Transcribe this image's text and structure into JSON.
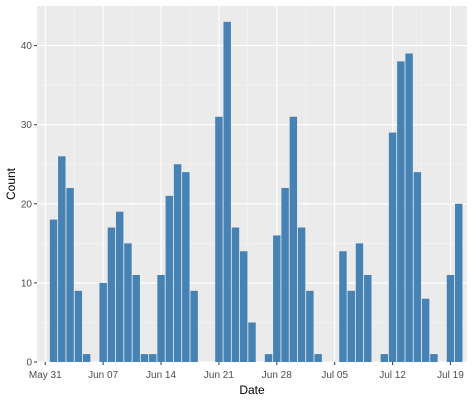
{
  "chart_data": {
    "type": "bar",
    "xlabel": "Date",
    "ylabel": "Count",
    "xlim": [
      "2020-05-30",
      "2020-07-21"
    ],
    "ylim": [
      0,
      45
    ],
    "y_ticks": [
      0,
      10,
      20,
      30,
      40
    ],
    "x_ticks": [
      {
        "date": "2020-05-31",
        "label": "May 31"
      },
      {
        "date": "2020-06-07",
        "label": "Jun 07"
      },
      {
        "date": "2020-06-14",
        "label": "Jun 14"
      },
      {
        "date": "2020-06-21",
        "label": "Jun 21"
      },
      {
        "date": "2020-06-28",
        "label": "Jun 28"
      },
      {
        "date": "2020-07-05",
        "label": "Jul 05"
      },
      {
        "date": "2020-07-12",
        "label": "Jul 12"
      },
      {
        "date": "2020-07-19",
        "label": "Jul 19"
      }
    ],
    "grid": true,
    "bar_color": "#4682B4",
    "panel_color": "#EBEBEB",
    "x": [
      "2020-06-01",
      "2020-06-02",
      "2020-06-03",
      "2020-06-04",
      "2020-06-05",
      "2020-06-06",
      "2020-06-07",
      "2020-06-08",
      "2020-06-09",
      "2020-06-10",
      "2020-06-11",
      "2020-06-12",
      "2020-06-13",
      "2020-06-14",
      "2020-06-15",
      "2020-06-16",
      "2020-06-17",
      "2020-06-18",
      "2020-06-19",
      "2020-06-20",
      "2020-06-21",
      "2020-06-22",
      "2020-06-23",
      "2020-06-24",
      "2020-06-25",
      "2020-06-26",
      "2020-06-27",
      "2020-06-28",
      "2020-06-29",
      "2020-06-30",
      "2020-07-01",
      "2020-07-02",
      "2020-07-03",
      "2020-07-04",
      "2020-07-05",
      "2020-07-06",
      "2020-07-07",
      "2020-07-08",
      "2020-07-09",
      "2020-07-10",
      "2020-07-11",
      "2020-07-12",
      "2020-07-13",
      "2020-07-14",
      "2020-07-15",
      "2020-07-16",
      "2020-07-17",
      "2020-07-18",
      "2020-07-19",
      "2020-07-20"
    ],
    "values": [
      18,
      26,
      22,
      9,
      1,
      0,
      10,
      17,
      19,
      15,
      11,
      1,
      1,
      11,
      21,
      25,
      24,
      9,
      0,
      0,
      31,
      43,
      17,
      14,
      5,
      0,
      1,
      16,
      22,
      31,
      17,
      9,
      1,
      0,
      0,
      14,
      9,
      15,
      11,
      0,
      1,
      29,
      38,
      39,
      24,
      8,
      1,
      0,
      11,
      20
    ]
  }
}
